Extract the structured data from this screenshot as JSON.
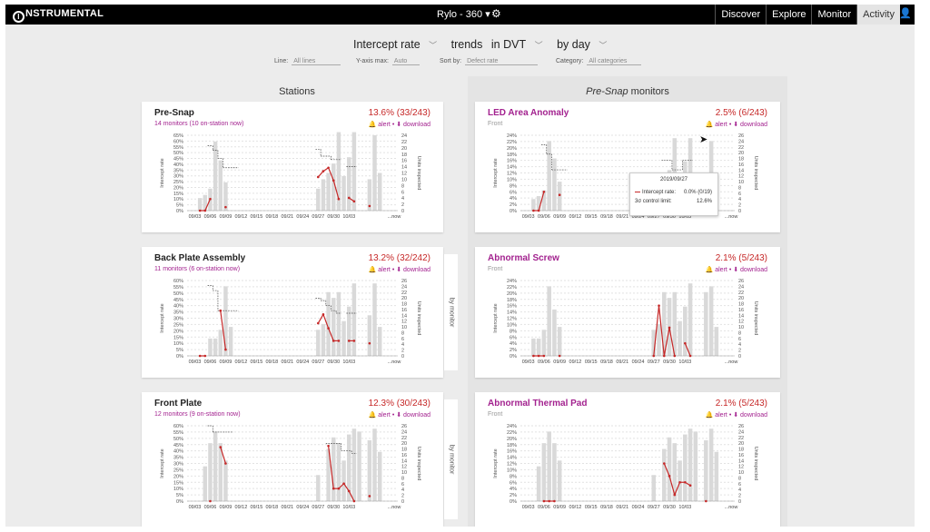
{
  "topbar": {
    "logo": "NSTRUMENTAL",
    "logo_letter": "I",
    "project": "Rylo - 360",
    "project_caret": "▾",
    "gear_icon": "⚙",
    "nav": [
      "Discover",
      "Explore",
      "Monitor",
      "Activity"
    ],
    "active_nav": "Activity",
    "user_icon": "👤"
  },
  "controls": {
    "metric": "Intercept rate",
    "trends_label": "trends",
    "phase": "in DVT",
    "period": "by day",
    "line_label": "Line:",
    "line_value": "All lines",
    "yaxis_label": "Y-axis max:",
    "yaxis_value": "Auto",
    "sort_label": "Sort by:",
    "sort_value": "Defect rate",
    "category_label": "Category:",
    "category_value": "All categories"
  },
  "columns": {
    "stations_header": "Stations",
    "monitors_header_em": "Pre-Snap",
    "monitors_header_rest": " monitors"
  },
  "links": {
    "alert": "alert",
    "download": "download",
    "sep": "•"
  },
  "side_tab_label": "by monitor",
  "x_ticks": [
    "09/03",
    "09/06",
    "09/09",
    "09/12",
    "09/15",
    "09/18",
    "09/21",
    "09/24",
    "09/27",
    "09/30",
    "10/03",
    "...now"
  ],
  "y_right_label": "Units inspected",
  "y_left_label": "Intercept rate",
  "cards": [
    {
      "id": "pre-snap",
      "title": "Pre-Snap",
      "subtitle": "14 monitors (10 on-station now)",
      "pct": "13.6% (33/243)",
      "y_ticks": [
        "65%",
        "60%",
        "55%",
        "50%",
        "45%",
        "40%",
        "35%",
        "30%",
        "25%",
        "20%",
        "15%",
        "10%",
        "5%",
        "0%"
      ],
      "y_right_ticks": [
        "24",
        "22",
        "20",
        "18",
        "16",
        "14",
        "12",
        "10",
        "8",
        "6",
        "4",
        "2",
        "0"
      ],
      "chart_data": {
        "type": "bar+line",
        "ylim": [
          0,
          65
        ],
        "y2lim": [
          0,
          24
        ],
        "units": [
          0,
          0,
          4,
          5,
          7,
          22,
          16,
          9,
          0,
          0,
          0,
          0,
          0,
          0,
          0,
          0,
          0,
          0,
          0,
          0,
          0,
          0,
          0,
          0,
          0,
          7,
          10,
          12,
          15,
          25,
          11,
          17,
          25,
          0,
          0,
          10,
          24,
          12,
          0,
          0,
          0
        ],
        "rate": [
          null,
          null,
          0,
          0,
          10,
          null,
          null,
          3,
          null,
          null,
          null,
          null,
          null,
          null,
          null,
          null,
          null,
          null,
          null,
          null,
          null,
          null,
          null,
          null,
          null,
          29,
          34,
          37,
          26,
          10,
          null,
          11,
          8,
          null,
          null,
          4,
          null,
          null,
          null,
          null,
          null
        ],
        "control": [
          null,
          null,
          null,
          null,
          56,
          52,
          45,
          37,
          37,
          37,
          null,
          null,
          null,
          null,
          null,
          null,
          null,
          null,
          null,
          null,
          null,
          null,
          null,
          null,
          null,
          53,
          47,
          47,
          44,
          44,
          null,
          38,
          38,
          null,
          null,
          null,
          null,
          null,
          null,
          null,
          null
        ]
      }
    },
    {
      "id": "back-plate",
      "title": "Back Plate Assembly",
      "subtitle": "11 monitors (6 on-station now)",
      "pct": "13.2% (32/242)",
      "y_ticks": [
        "60%",
        "55%",
        "50%",
        "45%",
        "40%",
        "35%",
        "30%",
        "25%",
        "20%",
        "15%",
        "10%",
        "5%",
        "0%"
      ],
      "y_right_ticks": [
        "26",
        "24",
        "22",
        "20",
        "18",
        "16",
        "14",
        "12",
        "10",
        "8",
        "6",
        "4",
        "2",
        "0"
      ],
      "chart_data": {
        "type": "bar+line",
        "ylim": [
          0,
          60
        ],
        "y2lim": [
          0,
          26
        ],
        "units": [
          0,
          0,
          0,
          0,
          6,
          6,
          9,
          24,
          10,
          0,
          0,
          0,
          0,
          0,
          0,
          0,
          0,
          0,
          0,
          0,
          0,
          0,
          0,
          0,
          0,
          9,
          11,
          22,
          20,
          22,
          12,
          17,
          25,
          0,
          0,
          14,
          25,
          10,
          0,
          0,
          0
        ],
        "rate": [
          null,
          null,
          0,
          0,
          null,
          null,
          36,
          5,
          null,
          null,
          null,
          null,
          null,
          null,
          null,
          null,
          null,
          null,
          null,
          null,
          null,
          null,
          null,
          null,
          null,
          26,
          33,
          22,
          12,
          12,
          null,
          12,
          12,
          null,
          null,
          10,
          null,
          null,
          null,
          null,
          null
        ],
        "control": [
          null,
          null,
          null,
          null,
          56,
          52,
          36,
          36,
          36,
          36,
          null,
          null,
          null,
          null,
          null,
          null,
          null,
          null,
          null,
          null,
          null,
          null,
          null,
          null,
          null,
          46,
          44,
          40,
          36,
          34,
          null,
          34,
          34,
          null,
          null,
          null,
          null,
          null,
          null,
          null,
          null
        ]
      }
    },
    {
      "id": "front-plate",
      "title": "Front Plate",
      "subtitle": "12 monitors (9 on-station now)",
      "pct": "12.3% (30/243)",
      "y_ticks": [
        "60%",
        "55%",
        "50%",
        "45%",
        "40%",
        "35%",
        "30%",
        "25%",
        "20%",
        "15%",
        "10%",
        "5%",
        "0%"
      ],
      "y_right_ticks": [
        "26",
        "24",
        "22",
        "20",
        "18",
        "16",
        "14",
        "12",
        "10",
        "8",
        "6",
        "4",
        "2",
        "0"
      ],
      "chart_data": {
        "type": "bar+line",
        "ylim": [
          0,
          60
        ],
        "y2lim": [
          0,
          26
        ],
        "units": [
          0,
          0,
          0,
          12,
          20,
          24,
          20,
          14,
          0,
          0,
          0,
          0,
          0,
          0,
          0,
          0,
          0,
          0,
          0,
          0,
          0,
          0,
          0,
          0,
          0,
          9,
          0,
          18,
          22,
          20,
          14,
          23,
          25,
          24,
          0,
          21,
          25,
          17,
          0,
          0,
          0
        ],
        "rate": [
          null,
          null,
          null,
          null,
          0,
          null,
          43,
          30,
          null,
          null,
          null,
          null,
          null,
          null,
          null,
          null,
          null,
          null,
          null,
          null,
          null,
          null,
          null,
          null,
          null,
          null,
          null,
          44,
          10,
          10,
          14,
          8,
          0,
          null,
          null,
          4,
          null,
          null,
          null,
          null,
          null
        ],
        "control": [
          null,
          null,
          null,
          null,
          60,
          55,
          55,
          55,
          55,
          null,
          null,
          null,
          null,
          null,
          null,
          null,
          null,
          null,
          null,
          null,
          null,
          null,
          null,
          null,
          null,
          null,
          null,
          46,
          46,
          46,
          40,
          40,
          38,
          null,
          null,
          null,
          null,
          null,
          null,
          null,
          null
        ]
      }
    },
    {
      "id": "led-area",
      "title": "LED Area Anomaly",
      "subtitle": "Front",
      "pct": "2.5% (6/243)",
      "y_ticks": [
        "24%",
        "22%",
        "20%",
        "18%",
        "16%",
        "14%",
        "12%",
        "10%",
        "8%",
        "6%",
        "4%",
        "2%",
        "0%"
      ],
      "y_right_ticks": [
        "26",
        "24",
        "22",
        "20",
        "18",
        "16",
        "14",
        "12",
        "10",
        "8",
        "6",
        "4",
        "2",
        "0"
      ],
      "chart_data": {
        "type": "bar+line",
        "ylim": [
          0,
          24
        ],
        "y2lim": [
          0,
          26
        ],
        "units": [
          0,
          0,
          4,
          5,
          7,
          24,
          18,
          10,
          0,
          0,
          0,
          0,
          0,
          0,
          0,
          0,
          0,
          0,
          0,
          0,
          0,
          0,
          0,
          0,
          0,
          7,
          10,
          12,
          14,
          25,
          12,
          17,
          25,
          0,
          0,
          10,
          24,
          12,
          0,
          0,
          0
        ],
        "rate": [
          null,
          null,
          0,
          0,
          6,
          null,
          null,
          5,
          null,
          null,
          null,
          null,
          null,
          null,
          null,
          null,
          null,
          null,
          null,
          null,
          null,
          null,
          null,
          null,
          null,
          null,
          null,
          0,
          null,
          4,
          null,
          0,
          null,
          null,
          null,
          null,
          null,
          null,
          null,
          null,
          null
        ],
        "control": [
          null,
          null,
          null,
          null,
          21,
          18,
          13,
          13,
          13,
          null,
          null,
          null,
          null,
          null,
          null,
          null,
          null,
          null,
          null,
          null,
          null,
          null,
          null,
          null,
          null,
          null,
          null,
          16,
          16,
          13,
          13,
          16,
          16,
          null,
          null,
          null,
          null,
          null,
          null,
          null,
          null
        ]
      },
      "tooltip": {
        "date": "2019/09/27",
        "row1_label": "Intercept rate:",
        "row1_value": "0.0% (0/19)",
        "row2_label": "3σ control limit:",
        "row2_value": "12.6%"
      }
    },
    {
      "id": "abnormal-screw",
      "title": "Abnormal Screw",
      "subtitle": "Front",
      "pct": "2.1% (5/243)",
      "y_ticks": [
        "24%",
        "22%",
        "20%",
        "18%",
        "16%",
        "14%",
        "12%",
        "10%",
        "8%",
        "6%",
        "4%",
        "2%",
        "0%"
      ],
      "y_right_ticks": [
        "26",
        "24",
        "22",
        "20",
        "18",
        "16",
        "14",
        "12",
        "10",
        "8",
        "6",
        "4",
        "2",
        "0"
      ],
      "chart_data": {
        "type": "bar+line",
        "ylim": [
          0,
          24
        ],
        "y2lim": [
          0,
          26
        ],
        "units": [
          0,
          0,
          6,
          6,
          9,
          24,
          16,
          10,
          0,
          0,
          0,
          0,
          0,
          0,
          0,
          0,
          0,
          0,
          0,
          0,
          0,
          0,
          0,
          0,
          0,
          9,
          11,
          22,
          20,
          22,
          12,
          17,
          25,
          0,
          0,
          22,
          24,
          10,
          0,
          0,
          0
        ],
        "rate": [
          null,
          null,
          0,
          0,
          0,
          null,
          null,
          0,
          null,
          null,
          null,
          null,
          null,
          null,
          null,
          null,
          null,
          null,
          null,
          null,
          null,
          null,
          null,
          null,
          null,
          0,
          16,
          0,
          9,
          0,
          null,
          4,
          0,
          null,
          null,
          null,
          null,
          null,
          null,
          null,
          null
        ]
      }
    },
    {
      "id": "abnormal-thermal",
      "title": "Abnormal Thermal Pad",
      "subtitle": "Front",
      "pct": "2.1% (5/243)",
      "y_ticks": [
        "24%",
        "22%",
        "20%",
        "18%",
        "16%",
        "14%",
        "12%",
        "10%",
        "8%",
        "6%",
        "4%",
        "2%",
        "0%"
      ],
      "y_right_ticks": [
        "26",
        "24",
        "22",
        "20",
        "18",
        "16",
        "14",
        "12",
        "10",
        "8",
        "6",
        "4",
        "2",
        "0"
      ],
      "chart_data": {
        "type": "bar+line",
        "ylim": [
          0,
          24
        ],
        "y2lim": [
          0,
          26
        ],
        "units": [
          0,
          0,
          0,
          12,
          20,
          24,
          20,
          14,
          0,
          0,
          0,
          0,
          0,
          0,
          0,
          0,
          0,
          0,
          0,
          0,
          0,
          0,
          0,
          0,
          0,
          9,
          0,
          18,
          22,
          20,
          14,
          23,
          25,
          24,
          0,
          21,
          25,
          17,
          0,
          0,
          0
        ],
        "rate": [
          null,
          null,
          null,
          null,
          0,
          0,
          0,
          null,
          null,
          null,
          null,
          null,
          null,
          null,
          null,
          null,
          null,
          null,
          null,
          null,
          null,
          null,
          null,
          null,
          null,
          null,
          null,
          12,
          8,
          2,
          6,
          6,
          5,
          null,
          null,
          0,
          null,
          null,
          null,
          null,
          null
        ]
      }
    }
  ]
}
